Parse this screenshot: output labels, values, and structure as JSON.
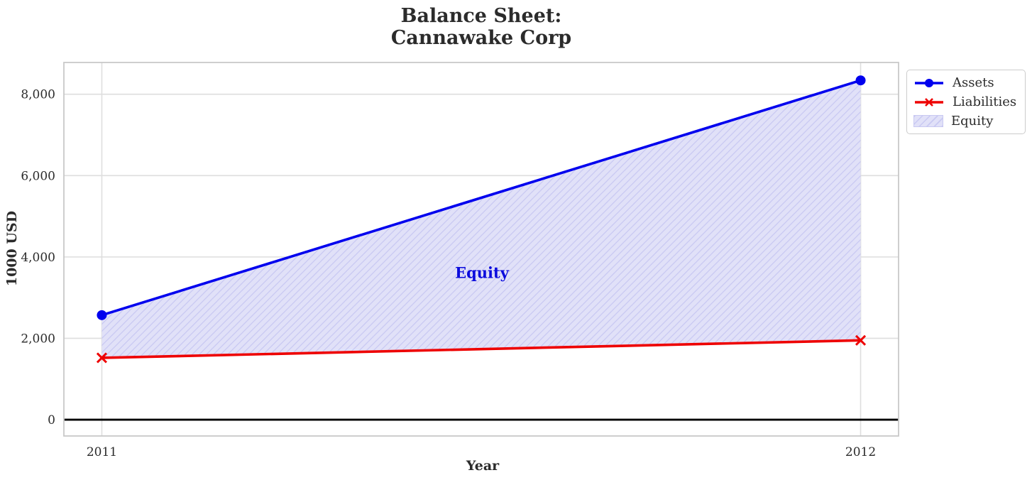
{
  "title": {
    "lines": [
      "Balance Sheet:",
      "Cannawake Corp"
    ],
    "color": "#2b2b2b"
  },
  "colors": {
    "background": "#ffffff",
    "grid": "#dedede",
    "spine": "#c9c9c9",
    "tick_text": "#2b2b2b"
  },
  "chart_data": {
    "type": "line",
    "title": "Balance Sheet: Cannawake Corp",
    "xlabel": "Year",
    "ylabel": "1000 USD",
    "x": [
      2011,
      2012
    ],
    "xtick_labels": [
      "2011",
      "2012"
    ],
    "yticks": [
      0,
      2000,
      4000,
      6000,
      8000
    ],
    "ytick_labels": [
      "0",
      "2,000",
      "4,000",
      "6,000",
      "8,000"
    ],
    "xlim": [
      2010.95,
      2012.05
    ],
    "ylim": [
      -400,
      8780
    ],
    "grid": true,
    "series": [
      {
        "name": "Assets",
        "color": "#0000ee",
        "marker": "circle",
        "values": [
          2570,
          8340
        ]
      },
      {
        "name": "Liabilities",
        "color": "#ee0000",
        "marker": "x",
        "values": [
          1520,
          1950
        ]
      }
    ],
    "fill_between": {
      "name": "Equity",
      "upper": "Assets",
      "lower": "Liabilities",
      "fill_color": "#e1e1f8",
      "hatch_color": "#c9c9f2",
      "hatch": "/",
      "derived_values": [
        1050,
        6390
      ]
    },
    "annotation": {
      "text": "Equity",
      "x": 2011.5,
      "y": 3650,
      "color": "#0c0cdd"
    },
    "zero_line": {
      "color": "#000000",
      "width": 2.8
    },
    "legend": {
      "position": "upper-right-outside",
      "entries": [
        {
          "label": "Assets"
        },
        {
          "label": "Liabilities"
        },
        {
          "label": "Equity"
        }
      ]
    }
  }
}
